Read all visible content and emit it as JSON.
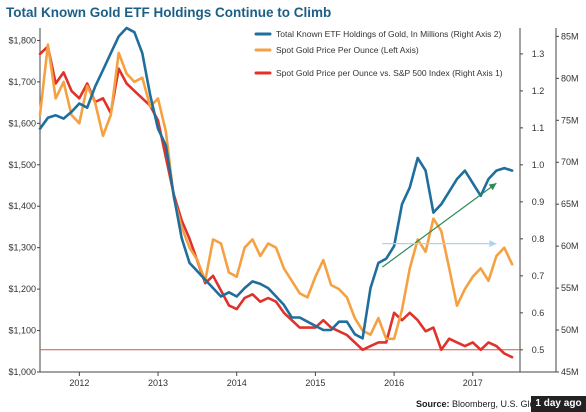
{
  "title": "Total Known Gold ETF Holdings Continue to Climb",
  "source_label": "Source:",
  "source_text": "Bloomberg, U.S. Glo",
  "badge": "1 day ago",
  "chart_data": {
    "type": "line",
    "title": "Total Known Gold ETF Holdings Continue to Climb",
    "x_ticks": [
      "2012",
      "2013",
      "2014",
      "2015",
      "2016",
      "2017"
    ],
    "xlim": [
      "2011.5",
      "2017.6"
    ],
    "y_left": {
      "ticks": [
        "$1,000",
        "$1,100",
        "$1,200",
        "$1,300",
        "$1,400",
        "$1,500",
        "$1,600",
        "$1,700",
        "$1,800"
      ],
      "ylim": [
        1000,
        1830
      ]
    },
    "y_right1": {
      "ticks": [
        "0.5",
        "0.6",
        "0.7",
        "0.8",
        "0.9",
        "1.0",
        "1.1",
        "1.2",
        "1.3"
      ],
      "ylim": [
        0.44,
        1.37
      ]
    },
    "y_right2": {
      "ticks": [
        "45M",
        "50M",
        "55M",
        "60M",
        "65M",
        "70M",
        "75M",
        "80M",
        "85M"
      ],
      "ylim": [
        45,
        86
      ]
    },
    "legend_position": "top-right",
    "grid": false,
    "series": [
      {
        "name": "Total Known ETF Holdings of Gold, In Millions (Right Axis 2)",
        "axis": "right2",
        "color": "#1f6e9c",
        "x": [
          2011.5,
          2011.6,
          2011.7,
          2011.8,
          2011.9,
          2012.0,
          2012.1,
          2012.2,
          2012.3,
          2012.4,
          2012.5,
          2012.6,
          2012.7,
          2012.8,
          2012.9,
          2013.0,
          2013.1,
          2013.2,
          2013.3,
          2013.4,
          2013.5,
          2013.6,
          2013.7,
          2013.8,
          2013.9,
          2014.0,
          2014.1,
          2014.2,
          2014.3,
          2014.4,
          2014.5,
          2014.6,
          2014.7,
          2014.8,
          2014.9,
          2015.0,
          2015.1,
          2015.2,
          2015.3,
          2015.4,
          2015.5,
          2015.6,
          2015.7,
          2015.8,
          2015.9,
          2016.0,
          2016.1,
          2016.2,
          2016.3,
          2016.4,
          2016.5,
          2016.6,
          2016.7,
          2016.8,
          2016.9,
          2017.0,
          2017.1,
          2017.2,
          2017.3,
          2017.4,
          2017.5
        ],
        "y": [
          74.0,
          75.3,
          75.6,
          75.2,
          76.0,
          77.0,
          76.5,
          79.0,
          81.0,
          83.0,
          85.0,
          86.0,
          85.5,
          83.0,
          78.0,
          74.0,
          72.0,
          66.0,
          61.0,
          58.0,
          57.0,
          56.0,
          55.0,
          54.0,
          54.5,
          54.0,
          55.0,
          55.8,
          55.5,
          55.0,
          54.0,
          53.0,
          51.5,
          51.5,
          51.0,
          50.5,
          50.0,
          50.0,
          51.0,
          51.0,
          49.5,
          49.0,
          55.0,
          58.0,
          58.5,
          60.0,
          65.0,
          67.0,
          70.5,
          69.0,
          64.0,
          65.0,
          66.5,
          68.0,
          69.0,
          67.5,
          66.0,
          68.0,
          69.0,
          69.3,
          69.0
        ]
      },
      {
        "name": "Spot Gold Price Per Ounce (Left Axis)",
        "axis": "left",
        "color": "#f5a142",
        "x": [
          2011.5,
          2011.6,
          2011.7,
          2011.8,
          2011.9,
          2012.0,
          2012.1,
          2012.2,
          2012.3,
          2012.4,
          2012.5,
          2012.6,
          2012.7,
          2012.8,
          2012.9,
          2013.0,
          2013.1,
          2013.2,
          2013.3,
          2013.4,
          2013.5,
          2013.6,
          2013.7,
          2013.8,
          2013.9,
          2014.0,
          2014.1,
          2014.2,
          2014.3,
          2014.4,
          2014.5,
          2014.6,
          2014.7,
          2014.8,
          2014.9,
          2015.0,
          2015.1,
          2015.2,
          2015.3,
          2015.4,
          2015.5,
          2015.6,
          2015.7,
          2015.8,
          2015.9,
          2016.0,
          2016.1,
          2016.2,
          2016.3,
          2016.4,
          2016.5,
          2016.6,
          2016.7,
          2016.8,
          2016.9,
          2017.0,
          2017.1,
          2017.2,
          2017.3,
          2017.4,
          2017.5
        ],
        "y": [
          1620,
          1790,
          1660,
          1700,
          1620,
          1600,
          1690,
          1650,
          1570,
          1620,
          1770,
          1720,
          1700,
          1710,
          1640,
          1660,
          1580,
          1420,
          1350,
          1300,
          1270,
          1220,
          1320,
          1310,
          1240,
          1230,
          1300,
          1320,
          1280,
          1310,
          1300,
          1250,
          1220,
          1190,
          1180,
          1230,
          1270,
          1210,
          1200,
          1180,
          1130,
          1100,
          1090,
          1130,
          1080,
          1080,
          1150,
          1250,
          1320,
          1290,
          1370,
          1340,
          1250,
          1160,
          1200,
          1230,
          1250,
          1220,
          1280,
          1300,
          1260
        ]
      },
      {
        "name": "Spot Gold Price per Ounce vs. S&P 500 Index (Right Axis 1)",
        "axis": "right1",
        "color": "#e0322b",
        "x": [
          2011.5,
          2011.6,
          2011.7,
          2011.8,
          2011.9,
          2012.0,
          2012.1,
          2012.2,
          2012.3,
          2012.4,
          2012.5,
          2012.6,
          2012.7,
          2012.8,
          2012.9,
          2013.0,
          2013.1,
          2013.2,
          2013.3,
          2013.4,
          2013.5,
          2013.6,
          2013.7,
          2013.8,
          2013.9,
          2014.0,
          2014.1,
          2014.2,
          2014.3,
          2014.4,
          2014.5,
          2014.6,
          2014.7,
          2014.8,
          2014.9,
          2015.0,
          2015.1,
          2015.2,
          2015.3,
          2015.4,
          2015.5,
          2015.6,
          2015.7,
          2015.8,
          2015.9,
          2016.0,
          2016.1,
          2016.2,
          2016.3,
          2016.4,
          2016.5,
          2016.6,
          2016.7,
          2016.8,
          2016.9,
          2017.0,
          2017.1,
          2017.2,
          2017.3,
          2017.4,
          2017.5
        ],
        "y": [
          1.3,
          1.32,
          1.22,
          1.25,
          1.2,
          1.18,
          1.22,
          1.17,
          1.18,
          1.14,
          1.26,
          1.22,
          1.2,
          1.18,
          1.16,
          1.12,
          1.02,
          0.92,
          0.85,
          0.8,
          0.74,
          0.68,
          0.7,
          0.66,
          0.62,
          0.61,
          0.64,
          0.65,
          0.63,
          0.64,
          0.63,
          0.6,
          0.58,
          0.56,
          0.56,
          0.56,
          0.58,
          0.56,
          0.55,
          0.54,
          0.52,
          0.5,
          0.51,
          0.52,
          0.52,
          0.6,
          0.58,
          0.6,
          0.58,
          0.55,
          0.56,
          0.5,
          0.53,
          0.52,
          0.51,
          0.52,
          0.5,
          0.52,
          0.51,
          0.49,
          0.48
        ]
      }
    ],
    "reference_lines": [
      {
        "axis": "right1",
        "y": 0.5,
        "color": "#d9534f"
      }
    ],
    "annotations": [
      {
        "type": "arrow",
        "axis": "right2",
        "from": [
          2015.85,
          57.5
        ],
        "to": [
          2017.3,
          67.5
        ],
        "color": "#2e8b57"
      },
      {
        "type": "arrow",
        "axis": "right2",
        "from": [
          2015.85,
          60.3
        ],
        "to": [
          2017.3,
          60.3
        ],
        "color": "#a8d4f0"
      }
    ]
  }
}
